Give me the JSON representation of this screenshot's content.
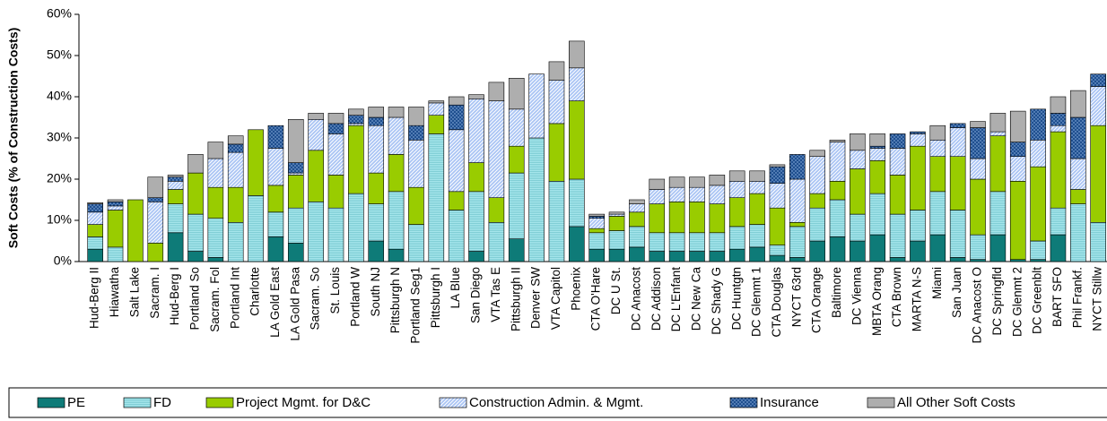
{
  "chart_data": {
    "type": "stacked_bar",
    "y_label": "Soft Costs (% of Construction Costs)",
    "categories": [
      "Hud-Berg II",
      "Hiawatha",
      "Salt Lake",
      "Sacram. I",
      "Hud-Berg I",
      "Portland So",
      "Sacram. Fol",
      "Portland Int",
      "Charlotte",
      "LA Gold East",
      "LA Gold Pasa",
      "Sacram. So",
      "St. Louis",
      "Portland W",
      "South NJ",
      "Pittsburgh N",
      "Portland Seg1",
      "Pittsburgh I",
      "LA Blue",
      "San Diego",
      "VTA Tas E",
      "Pittsburgh II",
      "Denver SW",
      "VTA Capitol",
      "Phoenix",
      "CTA O'Hare",
      "DC U St.",
      "DC Anacost",
      "DC Addison",
      "DC L'Enfant",
      "DC New Ca",
      "DC Shady G",
      "DC Huntgtn",
      "DC Glenmt 1",
      "CTA Douglas",
      "NYCT 63rd",
      "CTA Orange",
      "Baltimore",
      "DC Vienna",
      "MBTA Orang",
      "CTA Brown",
      "MARTA N-S",
      "Miami",
      "San Juan",
      "DC Anacost O",
      "DC Springfld",
      "DC Glenmt 2",
      "DC Greenblt",
      "BART SFO",
      "Phil Frankf.",
      "NYCT Stillw"
    ],
    "series": [
      {
        "name": "PE",
        "color": "#0e7b78",
        "values": [
          3,
          0,
          0,
          0,
          7,
          2.5,
          1,
          0,
          0,
          6,
          4.5,
          0,
          0,
          0,
          5,
          3,
          0,
          0,
          0,
          2.5,
          0,
          5.5,
          0,
          0,
          8.5,
          3,
          3,
          3.5,
          2.5,
          2.5,
          2.5,
          2.5,
          3,
          3.5,
          1.5,
          1,
          5,
          6,
          5,
          6.5,
          1,
          5,
          6.5,
          1,
          0.5,
          6.5,
          0.5,
          0.5,
          6.5,
          0,
          0
        ]
      },
      {
        "name": "FD",
        "color": "#a6e6ec",
        "values": [
          3,
          3.5,
          0,
          0,
          7,
          9,
          9.5,
          9.5,
          16,
          6,
          8.5,
          14.5,
          13,
          16.5,
          9,
          14,
          9,
          31,
          12.5,
          14.5,
          9.5,
          16,
          30,
          19.5,
          11.5,
          4,
          4.5,
          5,
          4.5,
          4.5,
          4.5,
          4.5,
          5.5,
          5.5,
          2.5,
          7.5,
          8,
          9,
          6.5,
          10,
          10.5,
          7.5,
          10.5,
          11.5,
          6,
          10.5,
          0,
          4.5,
          6.5,
          14,
          9.5
        ]
      },
      {
        "name": "Project Mgmt. for D&C",
        "color": "#99cc00",
        "values": [
          3,
          9,
          15,
          4.5,
          3.5,
          10,
          7.5,
          8.5,
          16,
          6.5,
          8,
          12.5,
          8,
          16.5,
          7.5,
          9,
          9,
          4.5,
          4.5,
          7,
          6,
          6.5,
          0,
          14,
          19,
          1,
          3.5,
          3.5,
          7,
          7.5,
          7.5,
          7,
          7,
          7.5,
          9,
          1,
          3.5,
          4.5,
          11,
          8,
          9.5,
          15.5,
          8.5,
          13,
          13.5,
          13.5,
          19,
          18,
          18.5,
          3.5,
          23.5
        ]
      },
      {
        "name": "Construction Admin. & Mgmt.",
        "color": "#a9c4f4",
        "values": [
          3,
          1,
          0,
          10,
          2,
          0,
          7,
          8.5,
          0,
          9,
          0.5,
          7.5,
          10,
          0.5,
          11.5,
          9,
          11.5,
          3,
          15,
          15.5,
          23.5,
          9,
          15.5,
          10.5,
          8,
          2.5,
          0.5,
          2,
          3.5,
          3.5,
          3.5,
          4.5,
          4,
          3,
          6,
          10.5,
          9,
          9.5,
          4.5,
          3,
          6.5,
          3,
          4,
          7,
          5,
          1,
          6,
          6.5,
          1.5,
          7.5,
          9.5
        ]
      },
      {
        "name": "Insurance",
        "color": "#1f4f8f",
        "values": [
          2,
          1,
          0,
          1,
          1,
          0,
          0,
          2,
          0,
          5.5,
          2.5,
          0,
          2.5,
          2,
          2,
          0,
          3.5,
          0,
          6,
          0,
          0,
          0,
          0,
          0,
          0,
          0.5,
          0,
          0,
          0,
          0,
          0,
          0,
          0,
          0,
          4,
          6,
          0,
          0,
          0,
          0.5,
          3.5,
          0.5,
          0,
          1,
          7.5,
          0,
          3.5,
          7.5,
          3,
          10,
          3
        ]
      },
      {
        "name": "All Other Soft Costs",
        "color": "#c8c8c8",
        "values": [
          0.3,
          0.5,
          0,
          5,
          0.5,
          4.5,
          4,
          2,
          0,
          0,
          10.5,
          1.5,
          2.5,
          1.5,
          2.5,
          2.5,
          4.5,
          0.5,
          2,
          1,
          4.5,
          7.5,
          0,
          4.5,
          6.5,
          0.5,
          0.5,
          1,
          2.5,
          2.5,
          2.5,
          2.5,
          2.5,
          2.5,
          0.5,
          0,
          1.5,
          0.5,
          4,
          3,
          0,
          0,
          3.5,
          0,
          1.5,
          4.5,
          7.5,
          0,
          4,
          6.5,
          0
        ]
      }
    ],
    "ylim": [
      0,
      60
    ],
    "yticks": [
      {
        "value": 0,
        "label": "0%"
      },
      {
        "value": 10,
        "label": "10%"
      },
      {
        "value": 20,
        "label": "20%"
      },
      {
        "value": 30,
        "label": "30%"
      },
      {
        "value": 40,
        "label": "40%"
      },
      {
        "value": 50,
        "label": "50%"
      },
      {
        "value": 60,
        "label": "60%"
      }
    ],
    "legend": "bottom"
  }
}
